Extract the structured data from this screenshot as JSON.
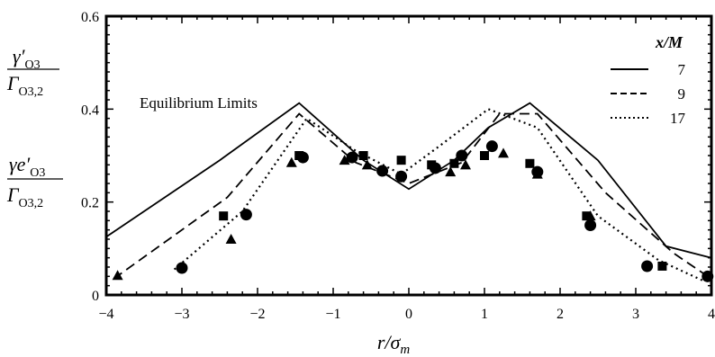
{
  "chart_data": {
    "type": "scatter",
    "xlabel": "r/σ_m",
    "xlim": [
      -4,
      4
    ],
    "ylim": [
      0,
      0.6
    ],
    "xticks": [
      "-4",
      "-3",
      "-2",
      "-1",
      "0",
      "1",
      "2",
      "3",
      "4"
    ],
    "yticks": [
      "0",
      "0.2",
      "0.4",
      "0.6"
    ],
    "grid": false,
    "legend_title": "x/M",
    "legend_position": "top-right",
    "ylabel_top": {
      "num_base": "γ′",
      "num_sub": "O3",
      "den_base": "Γ",
      "den_sub": "O3,2"
    },
    "ylabel_bottom": {
      "num_base": "γe′",
      "num_sub": "O3",
      "den_base": "Γ",
      "den_sub": "O3,2"
    },
    "annotation": "Equilibrium Limits",
    "line_series": [
      {
        "name": "7",
        "dash": "solid",
        "x": [
          -4.0,
          -2.5,
          -1.45,
          -0.6,
          0.0,
          0.6,
          1.05,
          1.6,
          2.5,
          3.4,
          4.0
        ],
        "y": [
          0.125,
          0.29,
          0.413,
          0.29,
          0.228,
          0.29,
          0.36,
          0.413,
          0.29,
          0.105,
          0.08
        ]
      },
      {
        "name": "9",
        "dash": "dashed",
        "x": [
          -3.9,
          -2.4,
          -1.45,
          -0.7,
          0.0,
          0.7,
          1.2,
          1.7,
          2.6,
          3.5,
          3.95
        ],
        "y": [
          0.035,
          0.21,
          0.39,
          0.285,
          0.24,
          0.285,
          0.39,
          0.39,
          0.22,
          0.09,
          0.04
        ]
      },
      {
        "name": "17",
        "dash": "dotted",
        "x": [
          -3.1,
          -2.2,
          -1.35,
          -0.7,
          -0.1,
          0.4,
          1.05,
          1.7,
          2.5,
          3.3,
          3.9
        ],
        "y": [
          0.055,
          0.18,
          0.38,
          0.31,
          0.26,
          0.32,
          0.4,
          0.36,
          0.17,
          0.075,
          0.03
        ]
      }
    ],
    "marker_series": [
      {
        "marker": "circle",
        "x": [
          -3.0,
          -2.15,
          -1.4,
          -0.75,
          -0.35,
          -0.1,
          0.35,
          0.7,
          1.1,
          1.7,
          2.4,
          3.15,
          3.95
        ],
        "y": [
          0.058,
          0.173,
          0.296,
          0.296,
          0.267,
          0.255,
          0.273,
          0.3,
          0.32,
          0.265,
          0.15,
          0.062,
          0.04
        ]
      },
      {
        "marker": "square",
        "x": [
          -2.45,
          -1.45,
          -0.6,
          -0.1,
          0.3,
          0.6,
          1.0,
          1.6,
          2.35,
          3.35
        ],
        "y": [
          0.17,
          0.3,
          0.3,
          0.29,
          0.28,
          0.283,
          0.3,
          0.283,
          0.17,
          0.062
        ]
      },
      {
        "marker": "triangle",
        "x": [
          -3.85,
          -2.35,
          -1.55,
          -0.85,
          -0.55,
          0.55,
          0.75,
          1.25,
          1.7,
          2.4
        ],
        "y": [
          0.042,
          0.12,
          0.285,
          0.29,
          0.28,
          0.265,
          0.28,
          0.305,
          0.26,
          0.17
        ]
      }
    ]
  }
}
